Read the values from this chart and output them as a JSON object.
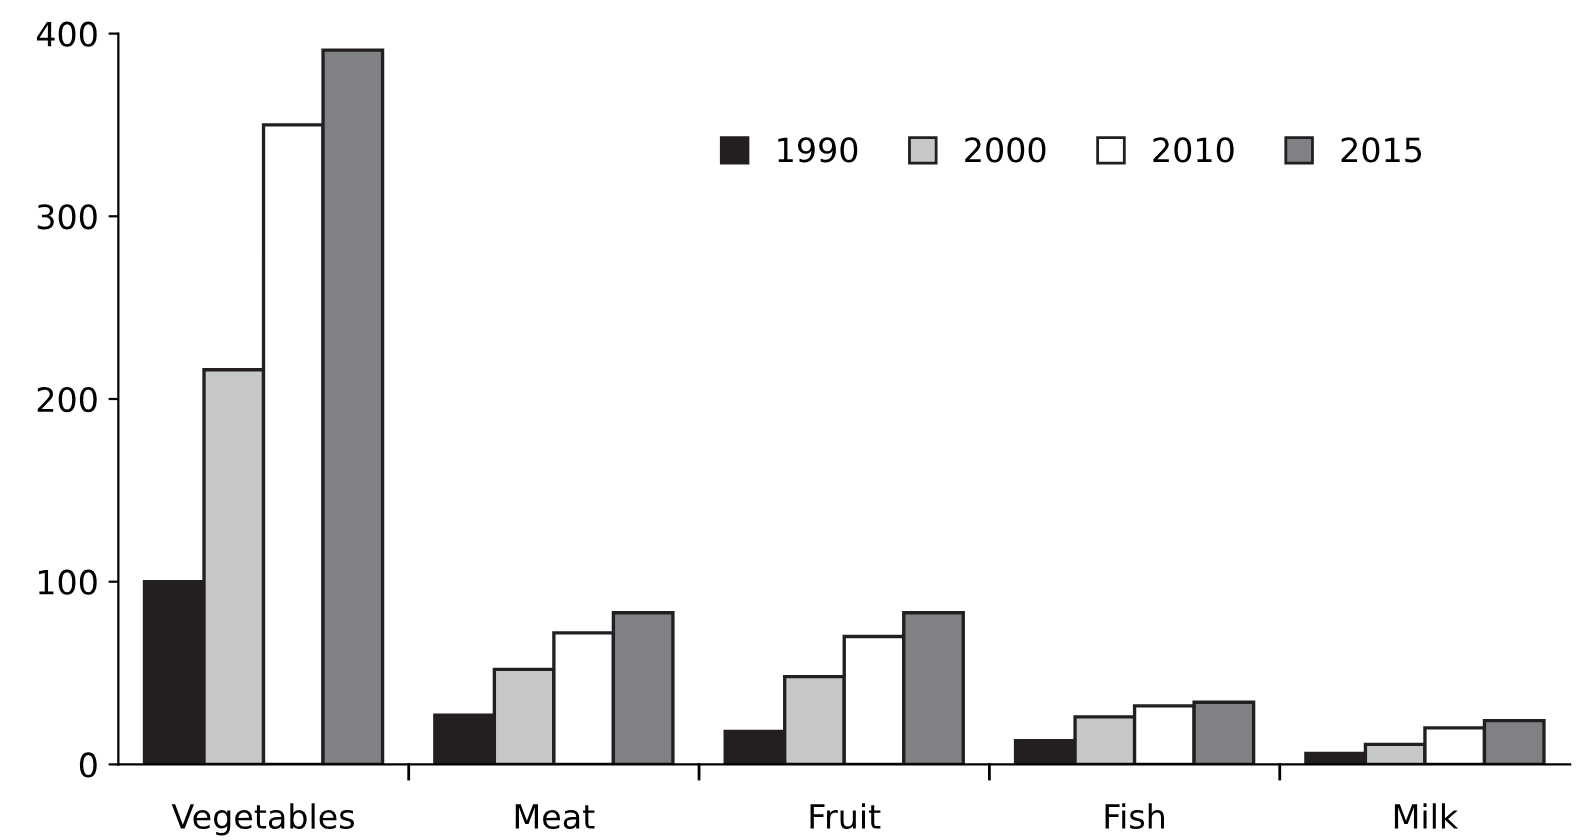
{
  "chart_data": {
    "type": "bar",
    "categories": [
      "Vegetables",
      "Meat",
      "Fruit",
      "Fish",
      "Milk"
    ],
    "series": [
      {
        "name": "1990",
        "color": "#231f20",
        "values": [
          100,
          27,
          18,
          13,
          6
        ]
      },
      {
        "name": "2000",
        "color": "#c6c7c9",
        "values": [
          216,
          52,
          48,
          26,
          11
        ]
      },
      {
        "name": "2010",
        "color": "#ffffff",
        "values": [
          350,
          72,
          70,
          32,
          20
        ]
      },
      {
        "name": "2015",
        "color": "#808184",
        "values": [
          391,
          83,
          83,
          34,
          24
        ]
      }
    ],
    "ylim": [
      0,
      400
    ],
    "yticks": [
      0,
      100,
      200,
      300,
      400
    ],
    "grid": false,
    "legend": "top right"
  }
}
